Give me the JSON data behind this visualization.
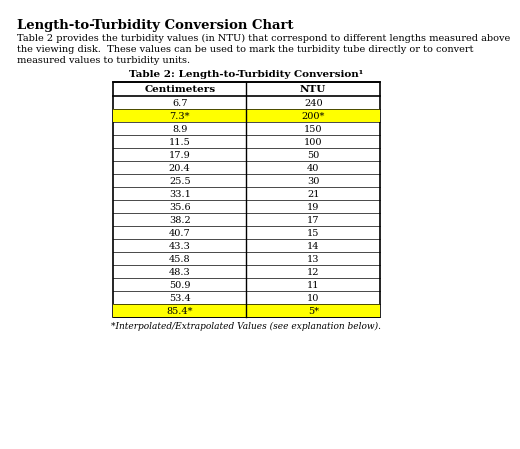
{
  "title": "Length-to-Turbidity Conversion Chart",
  "intro_line1": "Table 2 provides the turbidity values (in NTU) that correspond to different lengths measured above",
  "intro_line2": "the viewing disk.  These values can be used to mark the turbidity tube directly or to convert",
  "intro_line3": "measured values to turbidity units.",
  "table_title": "Table 2: Length-to-Turbidity Conversion¹",
  "col_headers": [
    "Centimeters",
    "NTU"
  ],
  "rows": [
    [
      "6.7",
      "240"
    ],
    [
      "7.3*",
      "200*"
    ],
    [
      "8.9",
      "150"
    ],
    [
      "11.5",
      "100"
    ],
    [
      "17.9",
      "50"
    ],
    [
      "20.4",
      "40"
    ],
    [
      "25.5",
      "30"
    ],
    [
      "33.1",
      "21"
    ],
    [
      "35.6",
      "19"
    ],
    [
      "38.2",
      "17"
    ],
    [
      "40.7",
      "15"
    ],
    [
      "43.3",
      "14"
    ],
    [
      "45.8",
      "13"
    ],
    [
      "48.3",
      "12"
    ],
    [
      "50.9",
      "11"
    ],
    [
      "53.4",
      "10"
    ],
    [
      "85.4*",
      "5*"
    ]
  ],
  "highlighted_rows": [
    1,
    16
  ],
  "highlight_color": "#FFFF00",
  "footer_text": "*Interpolated/Extrapolated Values (see explanation below).",
  "bg_color": "#ffffff",
  "text_color": "#000000",
  "title_fontsize": 9.5,
  "body_fontsize": 7.0,
  "table_title_fontsize": 7.5,
  "cell_fontsize": 7.0,
  "header_fontsize": 7.5
}
